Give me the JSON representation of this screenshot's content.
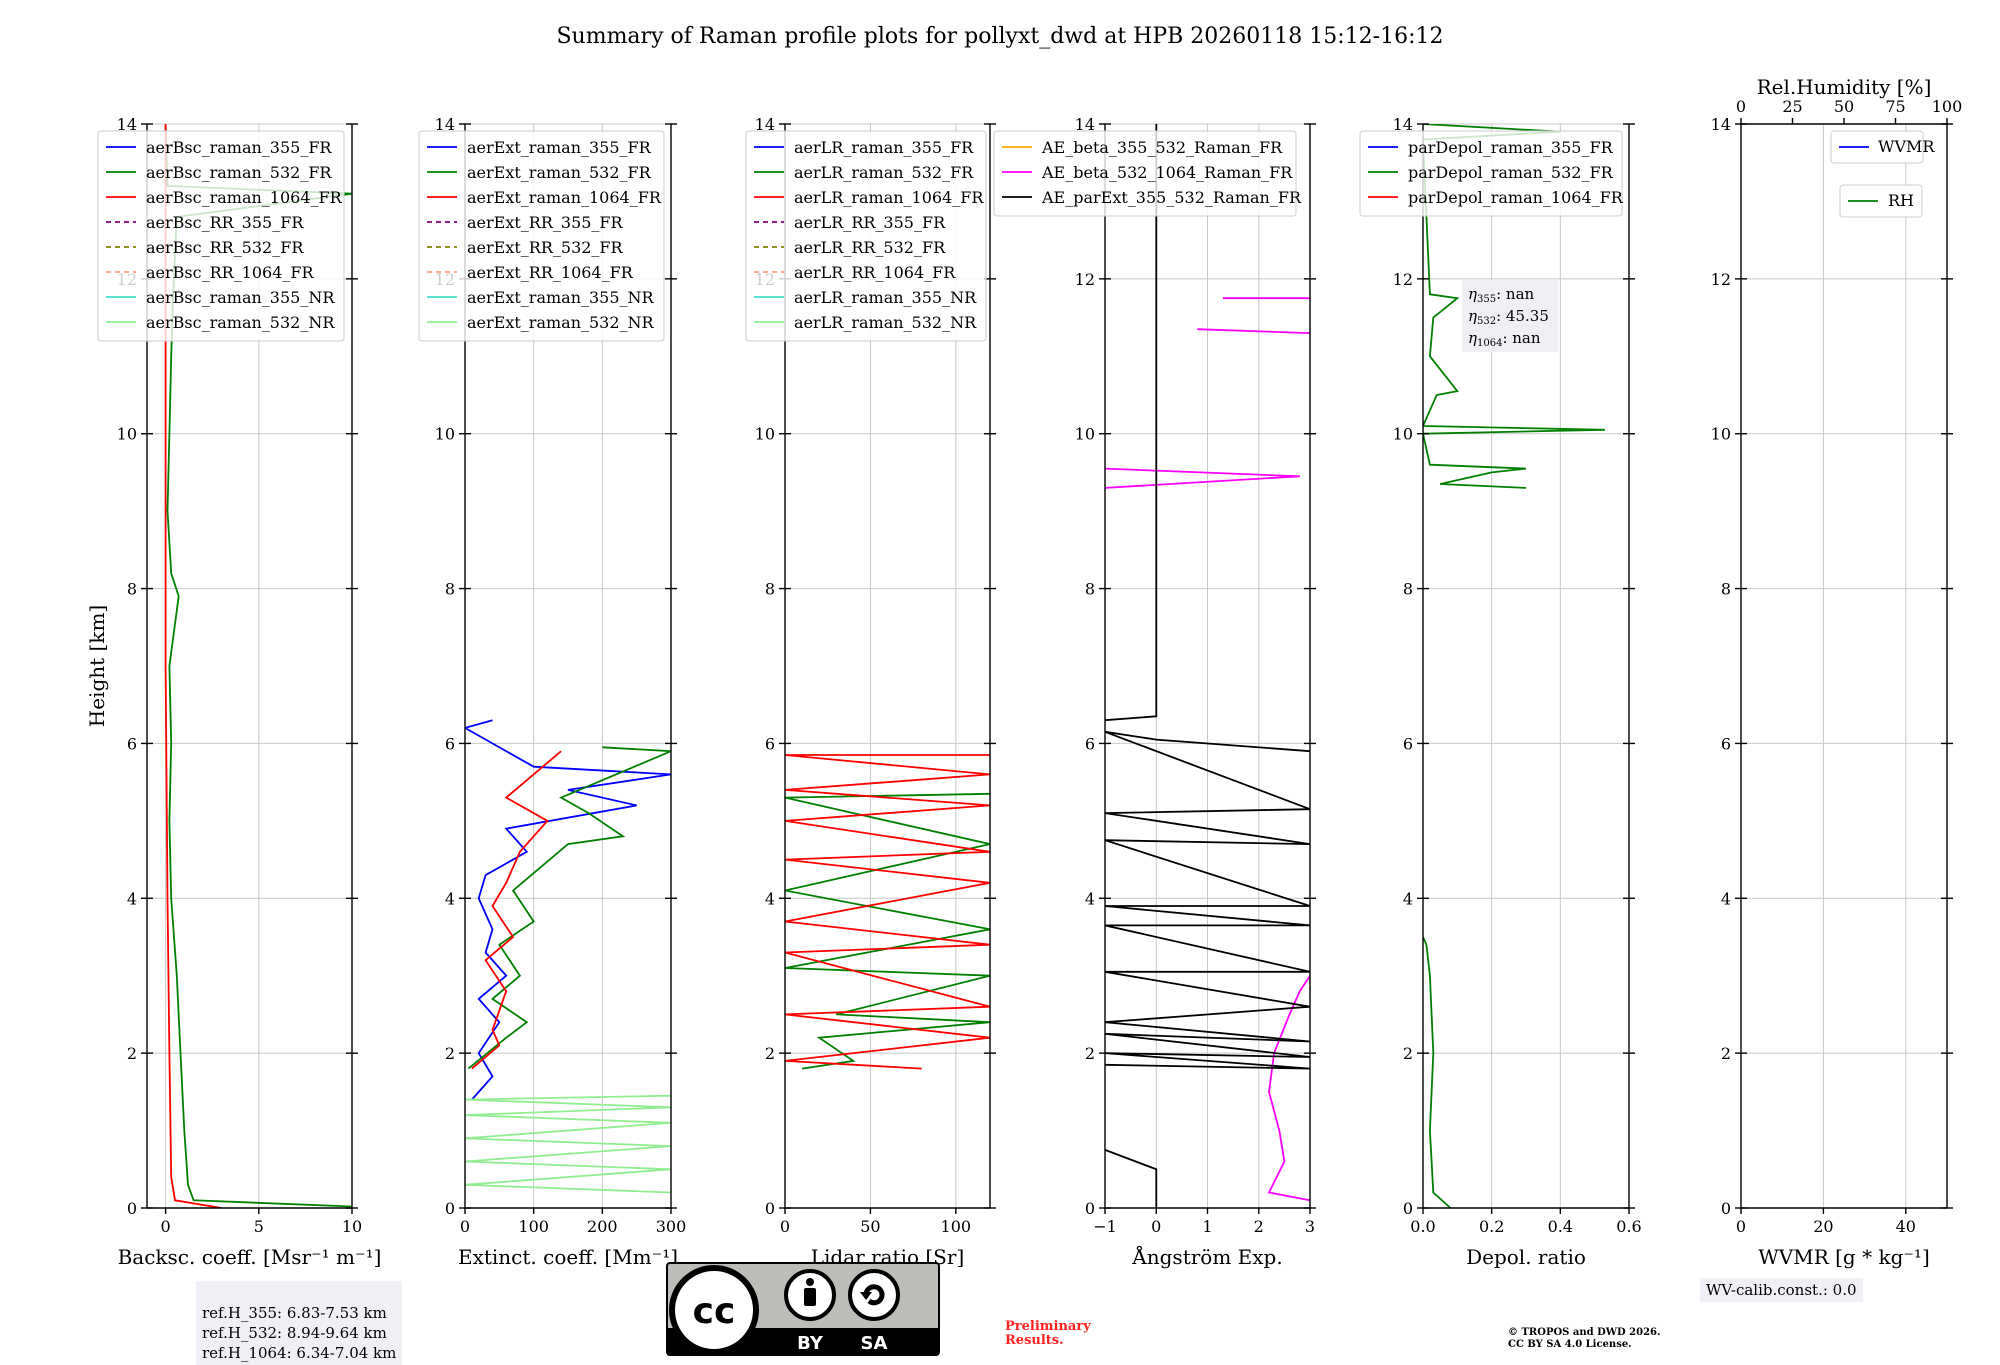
{
  "title": "Summary of Raman profile plots for pollyxt_dwd at HPB 20260118 15:12-16:12",
  "chart_data": [
    {
      "type": "line",
      "id": "bsc",
      "xlabel": "Backsc. coeff. [Msr⁻¹ m⁻¹]",
      "ylabel": "Height [km]",
      "xlim": [
        -1,
        10
      ],
      "ylim": [
        0,
        14
      ],
      "xticks": [
        0,
        5,
        10
      ],
      "yticks": [
        0,
        2,
        4,
        6,
        8,
        10,
        12,
        14
      ],
      "legend": [
        "aerBsc_raman_355_FR",
        "aerBsc_raman_532_FR",
        "aerBsc_raman_1064_FR",
        "aerBsc_RR_355_FR",
        "aerBsc_RR_532_FR",
        "aerBsc_RR_1064_FR",
        "aerBsc_raman_355_NR",
        "aerBsc_raman_532_NR"
      ],
      "series": [
        {
          "name": "aerBsc_raman_532_FR",
          "color": "#008000",
          "points": [
            [
              10,
              0.02
            ],
            [
              1.5,
              0.1
            ],
            [
              1.2,
              0.3
            ],
            [
              1.0,
              1.0
            ],
            [
              0.8,
              2.0
            ],
            [
              0.6,
              3.0
            ],
            [
              0.3,
              4.0
            ],
            [
              0.2,
              5.0
            ],
            [
              0.3,
              6.0
            ],
            [
              0.2,
              7.0
            ],
            [
              0.7,
              7.9
            ],
            [
              0.3,
              8.2
            ],
            [
              0.1,
              9.0
            ],
            [
              0.2,
              10.0
            ],
            [
              0.3,
              11.0
            ],
            [
              0.4,
              11.8
            ],
            [
              0.6,
              12.8
            ],
            [
              10,
              13.1
            ],
            [
              0.1,
              13.2
            ],
            [
              0.0,
              14.0
            ]
          ]
        },
        {
          "name": "aerBsc_raman_1064_FR",
          "color": "#ff0000",
          "points": [
            [
              3.0,
              0.0
            ],
            [
              0.5,
              0.1
            ],
            [
              0.3,
              0.4
            ],
            [
              0.2,
              2.0
            ],
            [
              0.1,
              4.0
            ],
            [
              0.0,
              7.0
            ],
            [
              0.0,
              14.0
            ]
          ]
        }
      ]
    },
    {
      "type": "line",
      "id": "ext",
      "xlabel": "Extinct. coeff. [Mm⁻¹]",
      "xlim": [
        0,
        300
      ],
      "ylim": [
        0,
        14
      ],
      "xticks": [
        0,
        100,
        200,
        300
      ],
      "yticks": [
        0,
        2,
        4,
        6,
        8,
        10,
        12,
        14
      ],
      "legend": [
        "aerExt_raman_355_FR",
        "aerExt_raman_532_FR",
        "aerExt_raman_1064_FR",
        "aerExt_RR_355_FR",
        "aerExt_RR_532_FR",
        "aerExt_RR_1064_FR",
        "aerExt_raman_355_NR",
        "aerExt_raman_532_NR"
      ],
      "series": [
        {
          "name": "aerExt_raman_355_FR",
          "color": "#0000ff",
          "points": [
            [
              10,
              1.4
            ],
            [
              40,
              1.7
            ],
            [
              20,
              2.0
            ],
            [
              50,
              2.4
            ],
            [
              20,
              2.7
            ],
            [
              60,
              3.0
            ],
            [
              30,
              3.3
            ],
            [
              40,
              3.6
            ],
            [
              20,
              4.0
            ],
            [
              30,
              4.3
            ],
            [
              90,
              4.6
            ],
            [
              60,
              4.9
            ],
            [
              250,
              5.2
            ],
            [
              150,
              5.4
            ],
            [
              300,
              5.6
            ],
            [
              100,
              5.7
            ],
            [
              0,
              6.2
            ],
            [
              40,
              6.3
            ]
          ]
        },
        {
          "name": "aerExt_raman_532_FR",
          "color": "#008000",
          "points": [
            [
              5,
              1.8
            ],
            [
              60,
              2.2
            ],
            [
              90,
              2.4
            ],
            [
              40,
              2.7
            ],
            [
              80,
              3.0
            ],
            [
              50,
              3.4
            ],
            [
              100,
              3.7
            ],
            [
              70,
              4.1
            ],
            [
              150,
              4.7
            ],
            [
              230,
              4.8
            ],
            [
              180,
              5.1
            ],
            [
              140,
              5.3
            ],
            [
              300,
              5.9
            ],
            [
              200,
              5.95
            ]
          ]
        },
        {
          "name": "aerExt_raman_1064_FR",
          "color": "#ff0000",
          "points": [
            [
              10,
              1.8
            ],
            [
              50,
              2.1
            ],
            [
              40,
              2.3
            ],
            [
              60,
              2.8
            ],
            [
              30,
              3.2
            ],
            [
              70,
              3.5
            ],
            [
              40,
              3.9
            ],
            [
              60,
              4.2
            ],
            [
              80,
              4.6
            ],
            [
              120,
              5.0
            ],
            [
              60,
              5.3
            ],
            [
              140,
              5.9
            ]
          ]
        },
        {
          "name": "aerExt_raman_532_NR",
          "color": "#90ee90",
          "points": [
            [
              300,
              0.2
            ],
            [
              0,
              0.3
            ],
            [
              300,
              0.5
            ],
            [
              0,
              0.6
            ],
            [
              300,
              0.8
            ],
            [
              0,
              0.9
            ],
            [
              300,
              1.1
            ],
            [
              0,
              1.2
            ],
            [
              300,
              1.3
            ],
            [
              0,
              1.4
            ],
            [
              300,
              1.45
            ]
          ]
        }
      ]
    },
    {
      "type": "line",
      "id": "lr",
      "xlabel": "Lidar ratio [Sr]",
      "xlim": [
        0,
        120
      ],
      "ylim": [
        0,
        14
      ],
      "xticks": [
        0,
        50,
        100
      ],
      "yticks": [
        0,
        2,
        4,
        6,
        8,
        10,
        12,
        14
      ],
      "legend": [
        "aerLR_raman_355_FR",
        "aerLR_raman_532_FR",
        "aerLR_raman_1064_FR",
        "aerLR_RR_355_FR",
        "aerLR_RR_532_FR",
        "aerLR_RR_1064_FR",
        "aerLR_raman_355_NR",
        "aerLR_raman_532_NR"
      ],
      "series": [
        {
          "name": "aerLR_raman_532_FR",
          "color": "#008000",
          "points": [
            [
              10,
              1.8
            ],
            [
              40,
              1.9
            ],
            [
              20,
              2.2
            ],
            [
              120,
              2.4
            ],
            [
              30,
              2.5
            ],
            [
              120,
              3.0
            ],
            [
              0,
              3.1
            ],
            [
              120,
              3.6
            ],
            [
              0,
              4.1
            ],
            [
              120,
              4.7
            ],
            [
              0,
              5.3
            ],
            [
              120,
              5.35
            ]
          ]
        },
        {
          "name": "aerLR_raman_1064_FR",
          "color": "#ff0000",
          "points": [
            [
              80,
              1.8
            ],
            [
              0,
              1.9
            ],
            [
              120,
              2.2
            ],
            [
              0,
              2.5
            ],
            [
              120,
              2.6
            ],
            [
              0,
              3.3
            ],
            [
              120,
              3.4
            ],
            [
              0,
              3.7
            ],
            [
              120,
              4.2
            ],
            [
              0,
              4.5
            ],
            [
              120,
              4.6
            ],
            [
              0,
              5.0
            ],
            [
              120,
              5.2
            ],
            [
              0,
              5.4
            ],
            [
              120,
              5.6
            ],
            [
              0,
              5.85
            ],
            [
              120,
              5.85
            ]
          ]
        }
      ]
    },
    {
      "type": "line",
      "id": "ae",
      "xlabel": "Ångström Exp.",
      "xlim": [
        -1,
        3
      ],
      "ylim": [
        0,
        14
      ],
      "xticks": [
        -1,
        0,
        1,
        2,
        3
      ],
      "yticks": [
        0,
        2,
        4,
        6,
        8,
        10,
        12,
        14
      ],
      "legend": [
        "AE_beta_355_532_Raman_FR",
        "AE_beta_532_1064_Raman_FR",
        "AE_parExt_355_532_Raman_FR"
      ],
      "series": [
        {
          "name": "AE_beta_532_1064_Raman_FR",
          "color": "#ff00ff",
          "points": [
            [
              3,
              0.1
            ],
            [
              2.2,
              0.2
            ],
            [
              2.5,
              0.6
            ],
            [
              2.4,
              1.0
            ],
            [
              2.2,
              1.5
            ],
            [
              2.3,
              2.0
            ],
            [
              2.6,
              2.5
            ],
            [
              2.8,
              2.8
            ],
            [
              3,
              3.0
            ]
          ]
        },
        {
          "name": "AE_beta_532_1064_Raman_FR",
          "color": "#ff00ff",
          "points": [
            [
              -1,
              9.3
            ],
            [
              2.8,
              9.45
            ],
            [
              -1,
              9.55
            ]
          ]
        },
        {
          "name": "AE_beta_532_1064_Raman_FR",
          "color": "#ff00ff",
          "points": [
            [
              0.8,
              11.35
            ],
            [
              3,
              11.3
            ]
          ]
        },
        {
          "name": "AE_beta_532_1064_Raman_FR",
          "color": "#ff00ff",
          "points": [
            [
              1.3,
              11.75
            ],
            [
              3,
              11.75
            ]
          ]
        },
        {
          "name": "AE_parExt_355_532_Raman_FR",
          "color": "#000000",
          "points": [
            [
              -1,
              0.75
            ],
            [
              0,
              0.5
            ],
            [
              0,
              0.0
            ]
          ]
        },
        {
          "name": "AE_parExt_355_532_Raman_FR",
          "color": "#000000",
          "points": [
            [
              -1,
              1.85
            ],
            [
              3,
              1.8
            ],
            [
              -1,
              2.0
            ],
            [
              3,
              1.95
            ],
            [
              -1,
              2.25
            ],
            [
              3,
              2.15
            ],
            [
              -1,
              2.4
            ],
            [
              3,
              2.6
            ],
            [
              -1,
              3.05
            ],
            [
              3,
              3.05
            ],
            [
              -1,
              3.65
            ],
            [
              3,
              3.65
            ],
            [
              -1,
              3.9
            ],
            [
              3,
              3.9
            ],
            [
              -1,
              4.75
            ],
            [
              3,
              4.7
            ],
            [
              -1,
              5.1
            ],
            [
              3,
              5.15
            ],
            [
              -1,
              6.15
            ],
            [
              0,
              6.05
            ],
            [
              3,
              5.9
            ]
          ]
        },
        {
          "name": "AE_parExt_355_532_Raman_FR",
          "color": "#000000",
          "points": [
            [
              -1,
              6.3
            ],
            [
              0,
              6.35
            ],
            [
              0,
              14
            ]
          ]
        }
      ]
    },
    {
      "type": "line",
      "id": "dep",
      "xlabel": "Depol. ratio",
      "xlim": [
        0,
        0.6
      ],
      "ylim": [
        0,
        14
      ],
      "xticks": [
        0.0,
        0.2,
        0.4,
        0.6
      ],
      "yticks": [
        0,
        2,
        4,
        6,
        8,
        10,
        12,
        14
      ],
      "legend": [
        "parDepol_raman_355_FR",
        "parDepol_raman_532_FR",
        "parDepol_raman_1064_FR"
      ],
      "series": [
        {
          "name": "parDepol_raman_532_FR",
          "color": "#008000",
          "points": [
            [
              0.08,
              0.0
            ],
            [
              0.03,
              0.2
            ],
            [
              0.02,
              1.0
            ],
            [
              0.03,
              2.0
            ],
            [
              0.02,
              3.0
            ],
            [
              0.01,
              3.4
            ],
            [
              0.0,
              3.5
            ]
          ]
        },
        {
          "name": "parDepol_raman_532_FR",
          "color": "#008000",
          "points": [
            [
              0.3,
              9.3
            ],
            [
              0.05,
              9.35
            ],
            [
              0.2,
              9.5
            ],
            [
              0.3,
              9.55
            ],
            [
              0.02,
              9.6
            ],
            [
              0.0,
              10.0
            ],
            [
              0.53,
              10.05
            ],
            [
              0.0,
              10.1
            ],
            [
              0.04,
              10.5
            ],
            [
              0.1,
              10.55
            ],
            [
              0.02,
              11.0
            ],
            [
              0.03,
              11.5
            ],
            [
              0.1,
              11.75
            ],
            [
              0.02,
              11.8
            ],
            [
              0.0,
              13.8
            ],
            [
              0.4,
              13.9
            ],
            [
              0.0,
              14.0
            ]
          ]
        }
      ]
    },
    {
      "type": "line",
      "id": "wv",
      "xlabel": "WVMR [g * kg⁻¹]",
      "top_xlabel": "Rel.Humidity [%]",
      "xlim": [
        0,
        50
      ],
      "top_xlim": [
        0,
        100
      ],
      "ylim": [
        0,
        14
      ],
      "xticks": [
        0,
        20,
        40
      ],
      "top_xticks": [
        0,
        25,
        50,
        75,
        100
      ],
      "yticks": [
        0,
        2,
        4,
        6,
        8,
        10,
        12,
        14
      ],
      "legend": [
        "WVMR",
        "RH"
      ],
      "series": []
    }
  ],
  "annotations": {
    "eta_355": "nan",
    "eta_532": "45.35",
    "eta_1064": "nan",
    "ref_h": [
      "ref.H_355: 6.83-7.53 km",
      "ref.H_532: 8.94-9.64 km",
      "ref.H_1064: 6.34-7.04 km"
    ],
    "wv_calib": "WV-calib.const.: 0.0",
    "preliminary": [
      "Preliminary",
      "Results."
    ],
    "copyright": [
      "© TROPOS and DWD 2026.",
      "CC BY SA 4.0 License."
    ],
    "license_badge": [
      "BY",
      "SA"
    ]
  }
}
